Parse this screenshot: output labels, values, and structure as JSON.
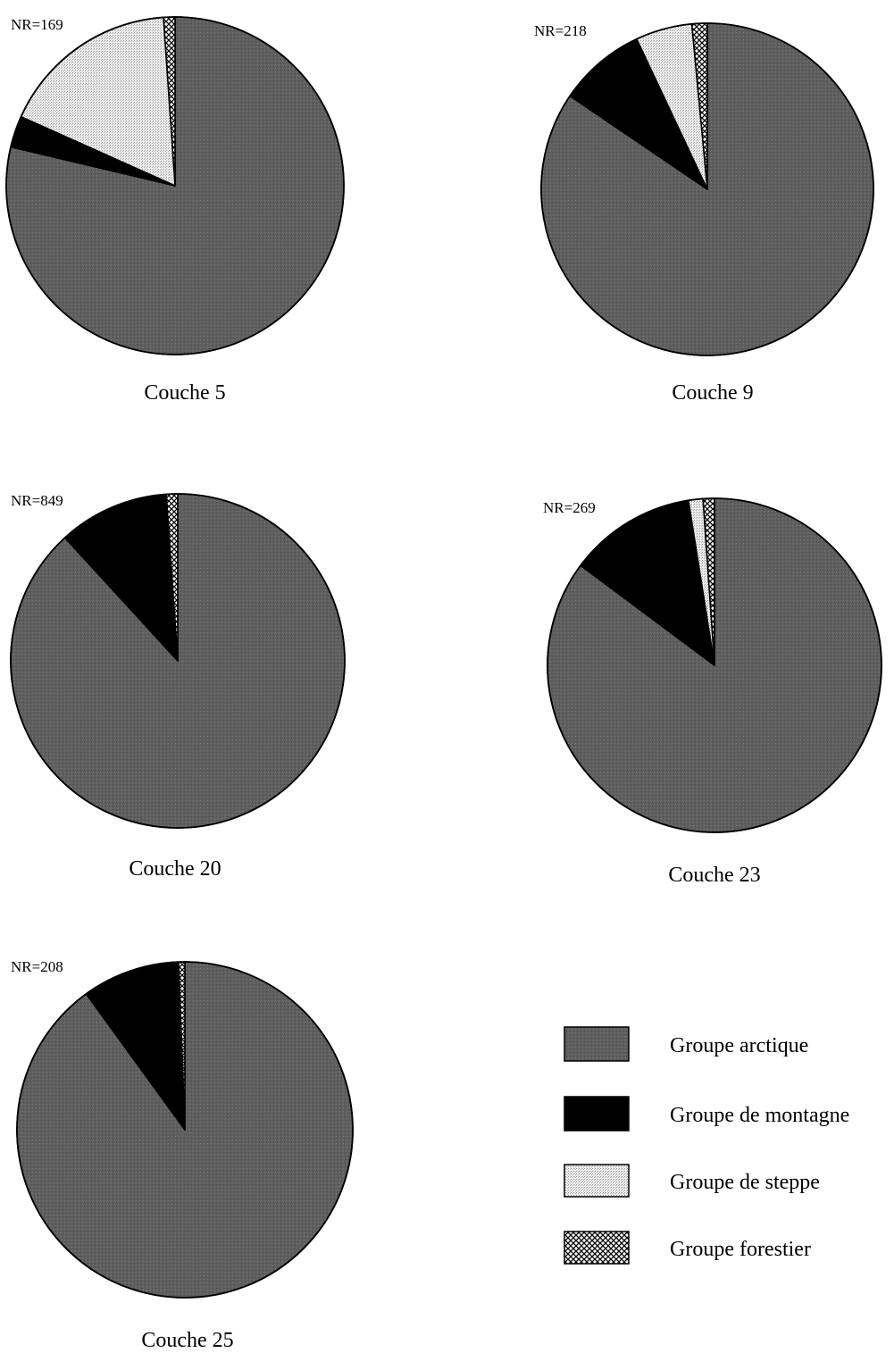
{
  "chart_data": [
    {
      "type": "pie",
      "title": "Couche 5",
      "annotation": "NR=169",
      "categories": [
        "Groupe arctique",
        "Groupe de montagne",
        "Groupe de steppe",
        "Groupe forestier"
      ],
      "values": [
        78.7,
        3.0,
        17.2,
        1.1
      ]
    },
    {
      "type": "pie",
      "title": "Couche 9",
      "annotation": "NR=218",
      "categories": [
        "Groupe arctique",
        "Groupe de montagne",
        "Groupe de steppe",
        "Groupe forestier"
      ],
      "values": [
        84.5,
        8.5,
        5.5,
        1.5
      ]
    },
    {
      "type": "pie",
      "title": "Couche 20",
      "annotation": "NR=849",
      "categories": [
        "Groupe arctique",
        "Groupe de montagne",
        "Groupe de steppe",
        "Groupe forestier"
      ],
      "values": [
        88.2,
        10.6,
        0.1,
        1.1
      ]
    },
    {
      "type": "pie",
      "title": "Couche 23",
      "annotation": "NR=269",
      "categories": [
        "Groupe arctique",
        "Groupe de montagne",
        "Groupe de steppe",
        "Groupe forestier"
      ],
      "values": [
        85.2,
        12.3,
        1.4,
        1.1
      ]
    },
    {
      "type": "pie",
      "title": "Couche 25",
      "annotation": "NR=208",
      "categories": [
        "Groupe arctique",
        "Groupe de montagne",
        "Groupe de steppe",
        "Groupe forestier"
      ],
      "values": [
        90.0,
        9.3,
        0.1,
        0.6
      ]
    }
  ],
  "legend": {
    "placement": "bottom-right",
    "items": [
      {
        "label": "Groupe arctique",
        "pattern": "arctic"
      },
      {
        "label": "Groupe de montagne",
        "pattern": "mountain"
      },
      {
        "label": "Groupe de steppe",
        "pattern": "steppe"
      },
      {
        "label": "Groupe forestier",
        "pattern": "forest"
      }
    ]
  },
  "colors": {
    "arctic": "#5e5e5e",
    "mountain": "#000000",
    "steppe": "#dcdcdc",
    "forest": "#ffffff",
    "outline": "#000000"
  }
}
